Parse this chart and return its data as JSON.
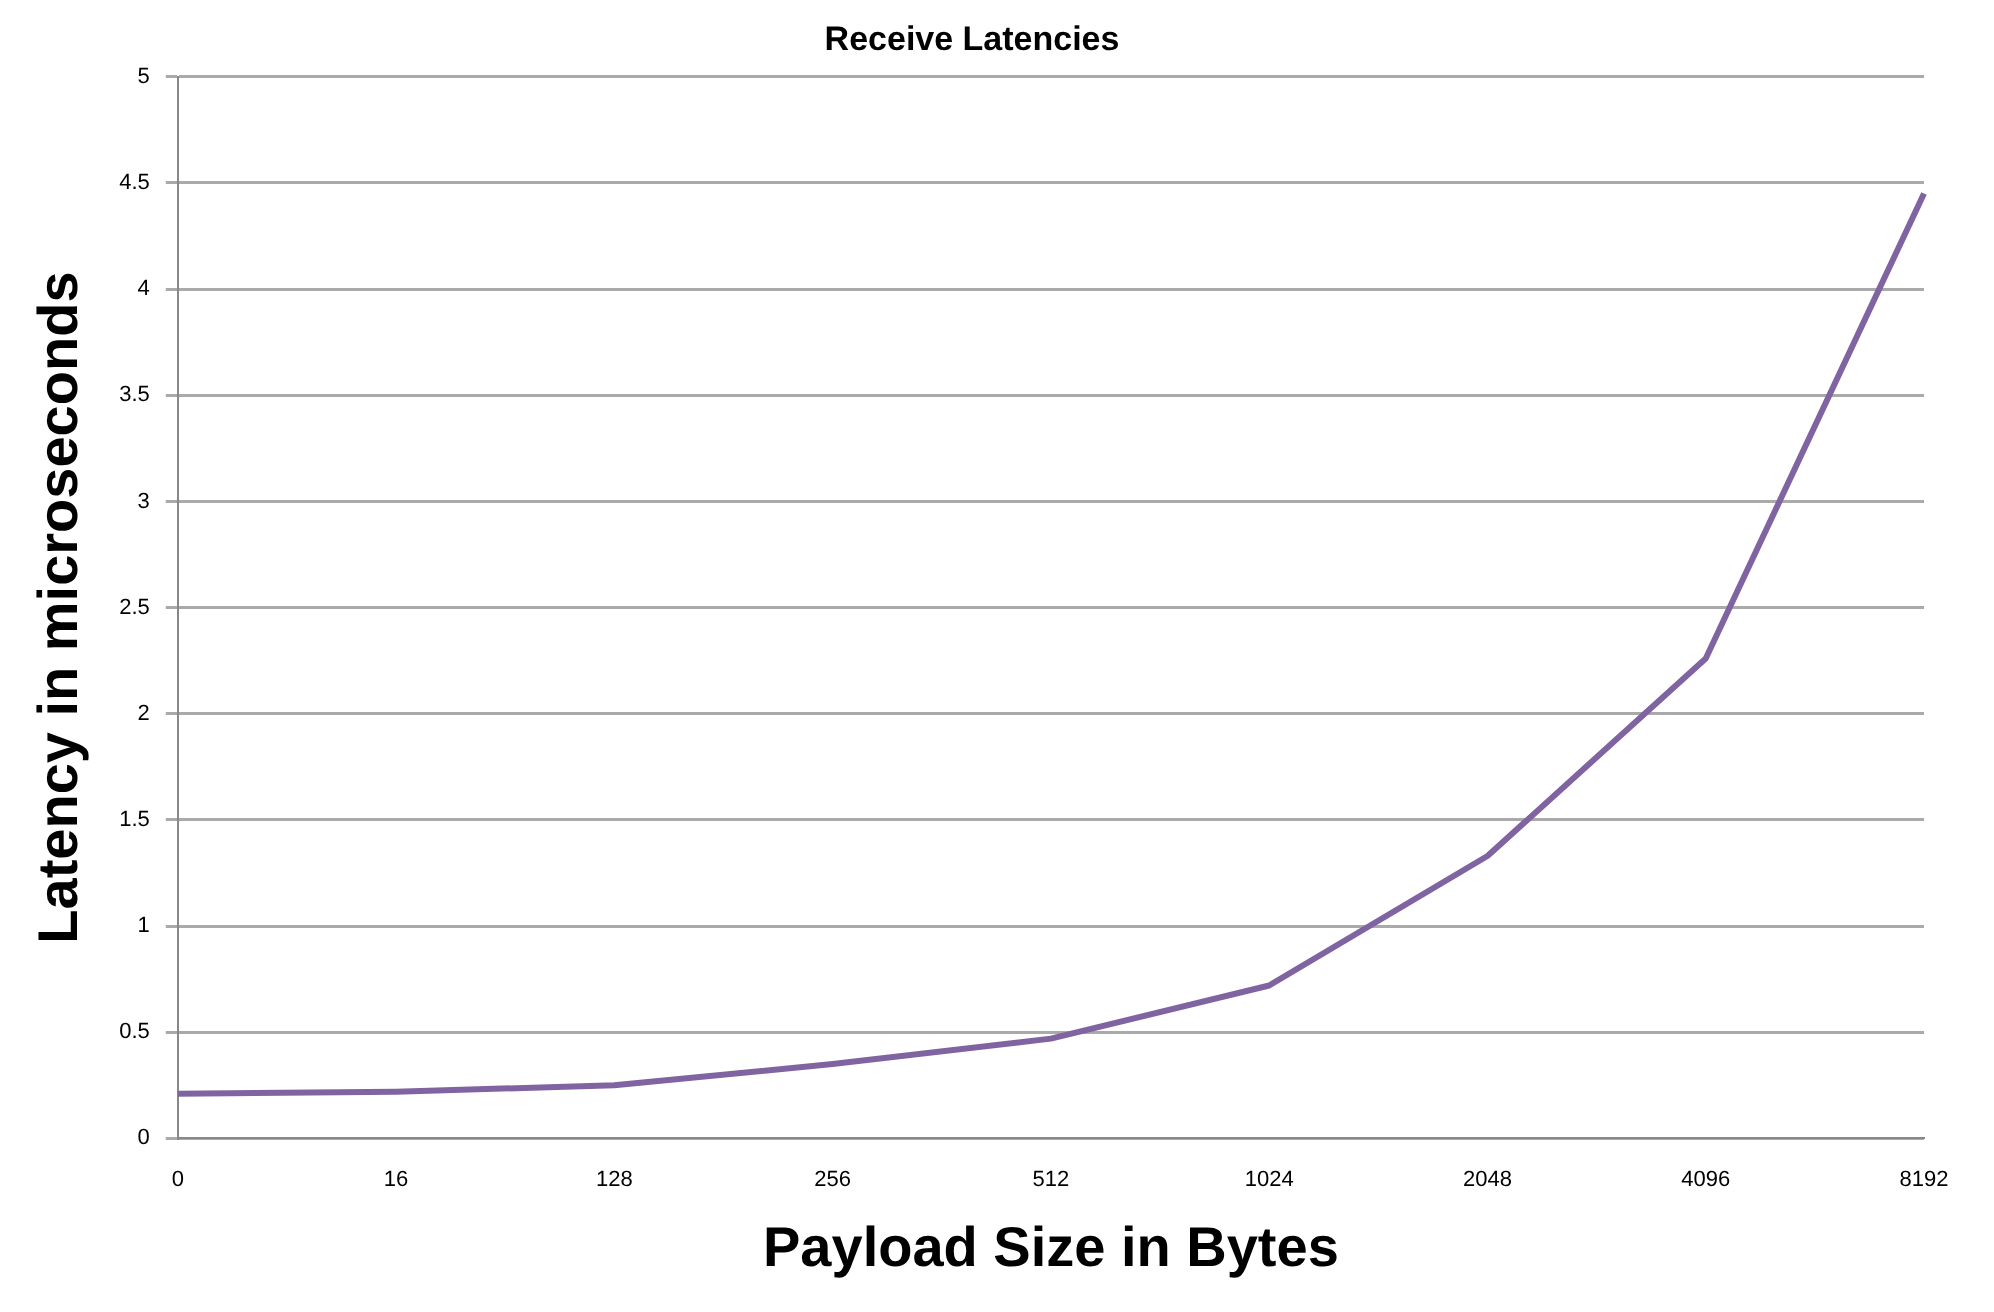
{
  "chart_data": {
    "type": "line",
    "title": "Receive Latencies",
    "xlabel": "Payload Size in Bytes",
    "ylabel": "Latency in microseconds",
    "categories": [
      "0",
      "16",
      "128",
      "256",
      "512",
      "1024",
      "2048",
      "4096",
      "8192"
    ],
    "series": [
      {
        "color": "#8064a2",
        "values": [
          0.21,
          0.22,
          0.25,
          0.35,
          0.47,
          0.72,
          1.33,
          2.26,
          4.45
        ]
      }
    ],
    "ylim": [
      0,
      5
    ],
    "yticks": [
      0,
      0.5,
      1,
      1.5,
      2,
      2.5,
      3,
      3.5,
      4,
      4.5,
      5
    ],
    "grid": "y",
    "legend": false,
    "marker": "none"
  }
}
